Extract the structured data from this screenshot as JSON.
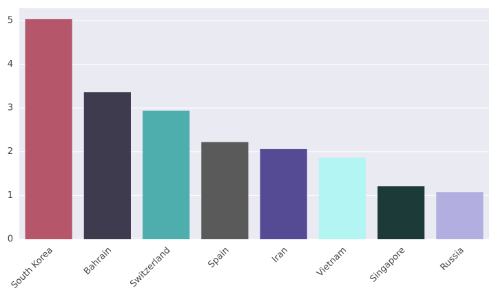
{
  "chart_data": {
    "type": "bar",
    "categories": [
      "South Korea",
      "Bahrain",
      "Switzerland",
      "Spain",
      "Iran",
      "Vietnam",
      "Singapore",
      "Russia"
    ],
    "values": [
      5.03,
      3.36,
      2.94,
      2.22,
      2.06,
      1.86,
      1.21,
      1.08
    ],
    "colors": [
      "#b5566a",
      "#3f3b4f",
      "#4eadad",
      "#5a5a5a",
      "#554a94",
      "#b3f5f2",
      "#1c3a38",
      "#b3aee0"
    ],
    "ylim": [
      0,
      5.28
    ],
    "yticks": [
      0,
      1,
      2,
      3,
      4,
      5
    ],
    "grid": true
  }
}
